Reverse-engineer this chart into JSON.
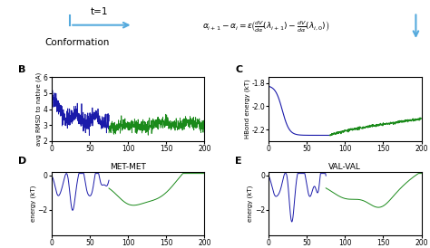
{
  "panel_B_ylim": [
    2,
    6
  ],
  "panel_B_ylabel": "avg RMSD to native (A)",
  "panel_B_label": "B",
  "panel_C_ylim": [
    -2.3,
    -1.75
  ],
  "panel_C_yticks": [
    -2.2,
    -2.0,
    -1.8
  ],
  "panel_C_yticklabels": [
    "-2.2",
    "-2.0",
    "-1.8"
  ],
  "panel_C_ylabel": "HBond energy (kT)",
  "panel_C_label": "C",
  "panel_D_title": "MET-MET",
  "panel_D_ylim": [
    -3.5,
    0.2
  ],
  "panel_D_yticks": [
    0,
    -2
  ],
  "panel_D_ylabel": "energy (kT)",
  "panel_D_label": "D",
  "panel_E_title": "VAL-VAL",
  "panel_E_ylim": [
    -3.5,
    0.2
  ],
  "panel_E_yticks": [
    0,
    -2
  ],
  "panel_E_ylabel": "energy (kT)",
  "panel_E_label": "E",
  "blue_color": "#1a1aaa",
  "green_color": "#1a8a1a",
  "arrow_color": "#55aadd",
  "top_text_t1": "t=1",
  "top_text_conformation": "Conformation",
  "xlim": [
    0,
    200
  ],
  "xticks": [
    0,
    50,
    100,
    150,
    200
  ]
}
